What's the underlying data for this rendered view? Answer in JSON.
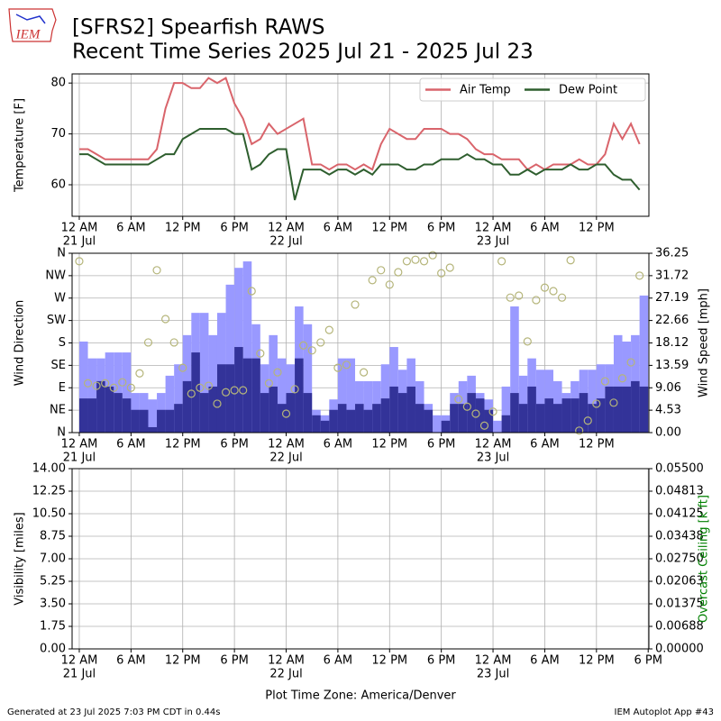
{
  "header": {
    "title": "[SFRS2] Spearfish RAWS",
    "subtitle": "Recent Time Series 2025 Jul 21 - 2025 Jul 23",
    "logo": "IEM"
  },
  "footer": {
    "left": "Generated at 23 Jul 2025 7:03 PM CDT in 0.44s",
    "right": "IEM Autoplot App #43"
  },
  "chart_data": [
    {
      "type": "line",
      "ylabel": "Temperature [F]",
      "xlim": [
        "2025-07-20T23:10",
        "2025-07-23T18:05"
      ],
      "xticks": [
        {
          "value": "2025-07-21T00:00",
          "label": "12 AM"
        },
        {
          "value": "2025-07-21T06:00",
          "label": "6 AM"
        },
        {
          "value": "2025-07-21T12:00",
          "label": "12 PM"
        },
        {
          "value": "2025-07-21T18:00",
          "label": "6 PM"
        },
        {
          "value": "2025-07-22T00:00",
          "label": "12 AM"
        },
        {
          "value": "2025-07-22T06:00",
          "label": "6 AM"
        },
        {
          "value": "2025-07-22T12:00",
          "label": "12 PM"
        },
        {
          "value": "2025-07-22T18:00",
          "label": "6 PM"
        },
        {
          "value": "2025-07-23T00:00",
          "label": "12 AM"
        },
        {
          "value": "2025-07-23T06:00",
          "label": "6 AM"
        },
        {
          "value": "2025-07-23T12:00",
          "label": "12 PM"
        }
      ],
      "xtick_dates": [
        {
          "value": "2025-07-21T00:00",
          "label": "21 Jul"
        },
        {
          "value": "2025-07-22T00:00",
          "label": "22 Jul"
        },
        {
          "value": "2025-07-23T00:00",
          "label": "23 Jul"
        }
      ],
      "ylim": [
        53.8,
        81.8
      ],
      "yticks": [
        60,
        70,
        80
      ],
      "grid": true,
      "legend": "upper right",
      "legend_columns": 2,
      "x": [
        "2025-07-21T00:00",
        "2025-07-21T01:00",
        "2025-07-21T02:00",
        "2025-07-21T03:00",
        "2025-07-21T04:00",
        "2025-07-21T05:00",
        "2025-07-21T06:00",
        "2025-07-21T07:00",
        "2025-07-21T08:00",
        "2025-07-21T09:00",
        "2025-07-21T10:00",
        "2025-07-21T11:00",
        "2025-07-21T12:00",
        "2025-07-21T13:00",
        "2025-07-21T14:00",
        "2025-07-21T15:00",
        "2025-07-21T16:00",
        "2025-07-21T17:00",
        "2025-07-21T18:00",
        "2025-07-21T19:00",
        "2025-07-21T20:00",
        "2025-07-21T21:00",
        "2025-07-21T22:00",
        "2025-07-21T23:00",
        "2025-07-22T00:00",
        "2025-07-22T01:00",
        "2025-07-22T02:00",
        "2025-07-22T03:00",
        "2025-07-22T04:00",
        "2025-07-22T05:00",
        "2025-07-22T06:00",
        "2025-07-22T07:00",
        "2025-07-22T08:00",
        "2025-07-22T09:00",
        "2025-07-22T10:00",
        "2025-07-22T11:00",
        "2025-07-22T12:00",
        "2025-07-22T13:00",
        "2025-07-22T14:00",
        "2025-07-22T15:00",
        "2025-07-22T16:00",
        "2025-07-22T17:00",
        "2025-07-22T18:00",
        "2025-07-22T19:00",
        "2025-07-22T20:00",
        "2025-07-22T21:00",
        "2025-07-22T22:00",
        "2025-07-22T23:00",
        "2025-07-23T00:00",
        "2025-07-23T01:00",
        "2025-07-23T02:00",
        "2025-07-23T03:00",
        "2025-07-23T04:00",
        "2025-07-23T05:00",
        "2025-07-23T06:00",
        "2025-07-23T07:00",
        "2025-07-23T08:00",
        "2025-07-23T09:00",
        "2025-07-23T10:00",
        "2025-07-23T11:00",
        "2025-07-23T12:00",
        "2025-07-23T13:00",
        "2025-07-23T14:00",
        "2025-07-23T15:00",
        "2025-07-23T16:00",
        "2025-07-23T17:00"
      ],
      "series": [
        {
          "name": "Air Temp",
          "color": "#d9646b",
          "kind": "line",
          "values": [
            67,
            67,
            66,
            65,
            65,
            65,
            65,
            65,
            65,
            67,
            75,
            80,
            80,
            79,
            79,
            81,
            80,
            81,
            76,
            73,
            68,
            69,
            72,
            70,
            71,
            72,
            73,
            64,
            64,
            63,
            64,
            64,
            63,
            64,
            63,
            68,
            71,
            70,
            69,
            69,
            71,
            71,
            71,
            70,
            70,
            69,
            67,
            66,
            66,
            65,
            65,
            65,
            63,
            64,
            63,
            64,
            64,
            64,
            65,
            64,
            64,
            66,
            72,
            69,
            72,
            68
          ]
        },
        {
          "name": "Dew Point",
          "color": "#2e5e2e",
          "kind": "line",
          "values": [
            66,
            66,
            65,
            64,
            64,
            64,
            64,
            64,
            64,
            65,
            66,
            66,
            69,
            70,
            71,
            71,
            71,
            71,
            70,
            70,
            63,
            64,
            66,
            67,
            67,
            57,
            63,
            63,
            63,
            62,
            63,
            63,
            62,
            63,
            62,
            64,
            64,
            64,
            63,
            63,
            64,
            64,
            65,
            65,
            65,
            66,
            65,
            65,
            64,
            64,
            62,
            62,
            63,
            62,
            63,
            63,
            63,
            64,
            63,
            63,
            64,
            64,
            62,
            61,
            61,
            59
          ]
        }
      ]
    },
    {
      "type": "combo",
      "ylabel": "Wind Direction",
      "y2label": "Wind Speed [mph]",
      "xlim": [
        "2025-07-20T23:10",
        "2025-07-23T18:05"
      ],
      "xticks": [
        {
          "value": "2025-07-21T00:00",
          "label": "12 AM"
        },
        {
          "value": "2025-07-21T06:00",
          "label": "6 AM"
        },
        {
          "value": "2025-07-21T12:00",
          "label": "12 PM"
        },
        {
          "value": "2025-07-21T18:00",
          "label": "6 PM"
        },
        {
          "value": "2025-07-22T00:00",
          "label": "12 AM"
        },
        {
          "value": "2025-07-22T06:00",
          "label": "6 AM"
        },
        {
          "value": "2025-07-22T12:00",
          "label": "12 PM"
        },
        {
          "value": "2025-07-22T18:00",
          "label": "6 PM"
        },
        {
          "value": "2025-07-23T00:00",
          "label": "12 AM"
        },
        {
          "value": "2025-07-23T06:00",
          "label": "6 AM"
        },
        {
          "value": "2025-07-23T12:00",
          "label": "12 PM"
        }
      ],
      "xtick_dates": [
        {
          "value": "2025-07-21T00:00",
          "label": "21 Jul"
        },
        {
          "value": "2025-07-22T00:00",
          "label": "22 Jul"
        },
        {
          "value": "2025-07-23T00:00",
          "label": "23 Jul"
        }
      ],
      "ylim": [
        0,
        360
      ],
      "yticks": [
        {
          "value": 0,
          "label": "N"
        },
        {
          "value": 45,
          "label": "NE"
        },
        {
          "value": 90,
          "label": "E"
        },
        {
          "value": 135,
          "label": "SE"
        },
        {
          "value": 180,
          "label": "S"
        },
        {
          "value": 225,
          "label": "SW"
        },
        {
          "value": 270,
          "label": "W"
        },
        {
          "value": 315,
          "label": "NW"
        },
        {
          "value": 360,
          "label": "N"
        }
      ],
      "y2lim": [
        0,
        36.25
      ],
      "y2ticks": [
        {
          "value": 0,
          "label": "0.00"
        },
        4.53,
        9.06,
        13.59,
        18.12,
        22.66,
        27.19,
        31.72,
        36.25
      ],
      "grid": true,
      "x": [
        "2025-07-21T00:00",
        "2025-07-21T01:00",
        "2025-07-21T02:00",
        "2025-07-21T03:00",
        "2025-07-21T04:00",
        "2025-07-21T05:00",
        "2025-07-21T06:00",
        "2025-07-21T07:00",
        "2025-07-21T08:00",
        "2025-07-21T09:00",
        "2025-07-21T10:00",
        "2025-07-21T11:00",
        "2025-07-21T12:00",
        "2025-07-21T13:00",
        "2025-07-21T14:00",
        "2025-07-21T15:00",
        "2025-07-21T16:00",
        "2025-07-21T17:00",
        "2025-07-21T18:00",
        "2025-07-21T19:00",
        "2025-07-21T20:00",
        "2025-07-21T21:00",
        "2025-07-21T22:00",
        "2025-07-21T23:00",
        "2025-07-22T00:00",
        "2025-07-22T01:00",
        "2025-07-22T02:00",
        "2025-07-22T03:00",
        "2025-07-22T04:00",
        "2025-07-22T05:00",
        "2025-07-22T06:00",
        "2025-07-22T07:00",
        "2025-07-22T08:00",
        "2025-07-22T09:00",
        "2025-07-22T10:00",
        "2025-07-22T11:00",
        "2025-07-22T12:00",
        "2025-07-22T13:00",
        "2025-07-22T14:00",
        "2025-07-22T15:00",
        "2025-07-22T16:00",
        "2025-07-22T17:00",
        "2025-07-22T18:00",
        "2025-07-22T19:00",
        "2025-07-22T20:00",
        "2025-07-22T21:00",
        "2025-07-22T22:00",
        "2025-07-22T23:00",
        "2025-07-23T00:00",
        "2025-07-23T01:00",
        "2025-07-23T02:00",
        "2025-07-23T03:00",
        "2025-07-23T04:00",
        "2025-07-23T05:00",
        "2025-07-23T06:00",
        "2025-07-23T07:00",
        "2025-07-23T08:00",
        "2025-07-23T09:00",
        "2025-07-23T10:00",
        "2025-07-23T11:00",
        "2025-07-23T12:00",
        "2025-07-23T13:00",
        "2025-07-23T14:00",
        "2025-07-23T15:00",
        "2025-07-23T16:00",
        "2025-07-23T17:00"
      ],
      "series": [
        {
          "color": "#9999ff",
          "kind": "bar",
          "axis": "y2",
          "values": [
            18.4,
            15,
            15,
            16.2,
            16.2,
            16.2,
            8,
            8,
            6.7,
            8,
            11.5,
            13.8,
            19.7,
            24.2,
            24.2,
            19.7,
            24.2,
            29.9,
            33.3,
            34.6,
            21.9,
            13.8,
            19.7,
            15,
            13.8,
            25.5,
            21.9,
            4.6,
            3.5,
            6.7,
            15,
            15,
            10.4,
            10.4,
            10.4,
            13.8,
            17.3,
            12.7,
            15,
            10.4,
            5.8,
            3.5,
            3.5,
            8,
            10.4,
            11.5,
            8,
            6.7,
            2.4,
            9.3,
            25.5,
            11.5,
            15,
            12.7,
            12.7,
            10.4,
            8,
            10.4,
            12.7,
            12.7,
            13.8,
            13.8,
            19.7,
            18.4,
            19.7,
            27.7
          ]
        },
        {
          "color": "#333399",
          "kind": "bar",
          "axis": "y2",
          "values": [
            6.9,
            6.9,
            10.4,
            9.3,
            8,
            6.9,
            4.6,
            4.6,
            1.1,
            4.6,
            4.6,
            5.8,
            10.4,
            16.2,
            8,
            9.3,
            13.8,
            13.8,
            17.3,
            15,
            15,
            8,
            9.3,
            5.8,
            8,
            15,
            8,
            3.5,
            2.4,
            4.6,
            5.8,
            4.6,
            5.8,
            4.6,
            5.8,
            6.9,
            9.3,
            8,
            9.3,
            5.8,
            4.6,
            0,
            2.4,
            5.8,
            5.8,
            8,
            6.9,
            4.6,
            0,
            3.5,
            8,
            5.8,
            9.3,
            5.8,
            6.9,
            5.8,
            6.9,
            6.9,
            8,
            5.8,
            6.9,
            9.3,
            9.3,
            9.3,
            10.4,
            9.3
          ]
        },
        {
          "color": "#b5b57a",
          "kind": "scatter",
          "values": [
            344,
            99,
            94,
            99,
            90,
            101,
            90,
            119,
            181,
            326,
            228,
            181,
            130,
            78,
            90,
            94,
            58,
            81,
            85,
            85,
            284,
            159,
            99,
            121,
            38,
            87,
            175,
            165,
            181,
            206,
            130,
            136,
            257,
            121,
            306,
            326,
            297,
            322,
            344,
            347,
            344,
            356,
            320,
            331,
            67,
            52,
            38,
            14,
            42,
            344,
            271,
            275,
            183,
            266,
            291,
            284,
            271,
            346,
            4,
            24,
            58,
            103,
            60,
            109,
            141,
            315
          ]
        }
      ]
    },
    {
      "type": "line",
      "ylabel": "Visibility [miles]",
      "y2label": "Overcast Ceiling [k ft]",
      "y2label_color": "#008000",
      "xlabel": "Plot Time Zone: America/Denver",
      "xlim": [
        "2025-07-20T23:10",
        "2025-07-23T18:05"
      ],
      "xticks": [
        {
          "value": "2025-07-21T00:00",
          "label": "12 AM"
        },
        {
          "value": "2025-07-21T06:00",
          "label": "6 AM"
        },
        {
          "value": "2025-07-21T12:00",
          "label": "12 PM"
        },
        {
          "value": "2025-07-21T18:00",
          "label": "6 PM"
        },
        {
          "value": "2025-07-22T00:00",
          "label": "12 AM"
        },
        {
          "value": "2025-07-22T06:00",
          "label": "6 AM"
        },
        {
          "value": "2025-07-22T12:00",
          "label": "12 PM"
        },
        {
          "value": "2025-07-22T18:00",
          "label": "6 PM"
        },
        {
          "value": "2025-07-23T00:00",
          "label": "12 AM"
        },
        {
          "value": "2025-07-23T06:00",
          "label": "6 AM"
        },
        {
          "value": "2025-07-23T12:00",
          "label": "12 PM"
        },
        {
          "value": "2025-07-23T18:00",
          "label": "6 PM"
        }
      ],
      "xtick_dates": [
        {
          "value": "2025-07-21T00:00",
          "label": "21 Jul"
        },
        {
          "value": "2025-07-22T00:00",
          "label": "22 Jul"
        },
        {
          "value": "2025-07-23T00:00",
          "label": "23 Jul"
        }
      ],
      "ylim": [
        0,
        14
      ],
      "yticks": [
        {
          "value": 0,
          "label": "0.00"
        },
        1.75,
        {
          "value": 3.5,
          "label": "3.50"
        },
        5.25,
        {
          "value": 7,
          "label": "7.00"
        },
        8.75,
        {
          "value": 10.5,
          "label": "10.50"
        },
        12.25,
        {
          "value": 14,
          "label": "14.00"
        }
      ],
      "y2lim": [
        0,
        0.055
      ],
      "y2ticks": [
        {
          "value": 0,
          "label": "0.00000"
        },
        {
          "value": 0.006875,
          "label": "0.00688"
        },
        {
          "value": 0.01375,
          "label": "0.01375"
        },
        {
          "value": 0.020625,
          "label": "0.02063"
        },
        {
          "value": 0.0275,
          "label": "0.02750"
        },
        {
          "value": 0.034375,
          "label": "0.03438"
        },
        {
          "value": 0.04125,
          "label": "0.04125"
        },
        {
          "value": 0.048125,
          "label": "0.04813"
        },
        {
          "value": 0.055,
          "label": "0.05500"
        }
      ],
      "grid": true,
      "x": [],
      "series": []
    }
  ]
}
